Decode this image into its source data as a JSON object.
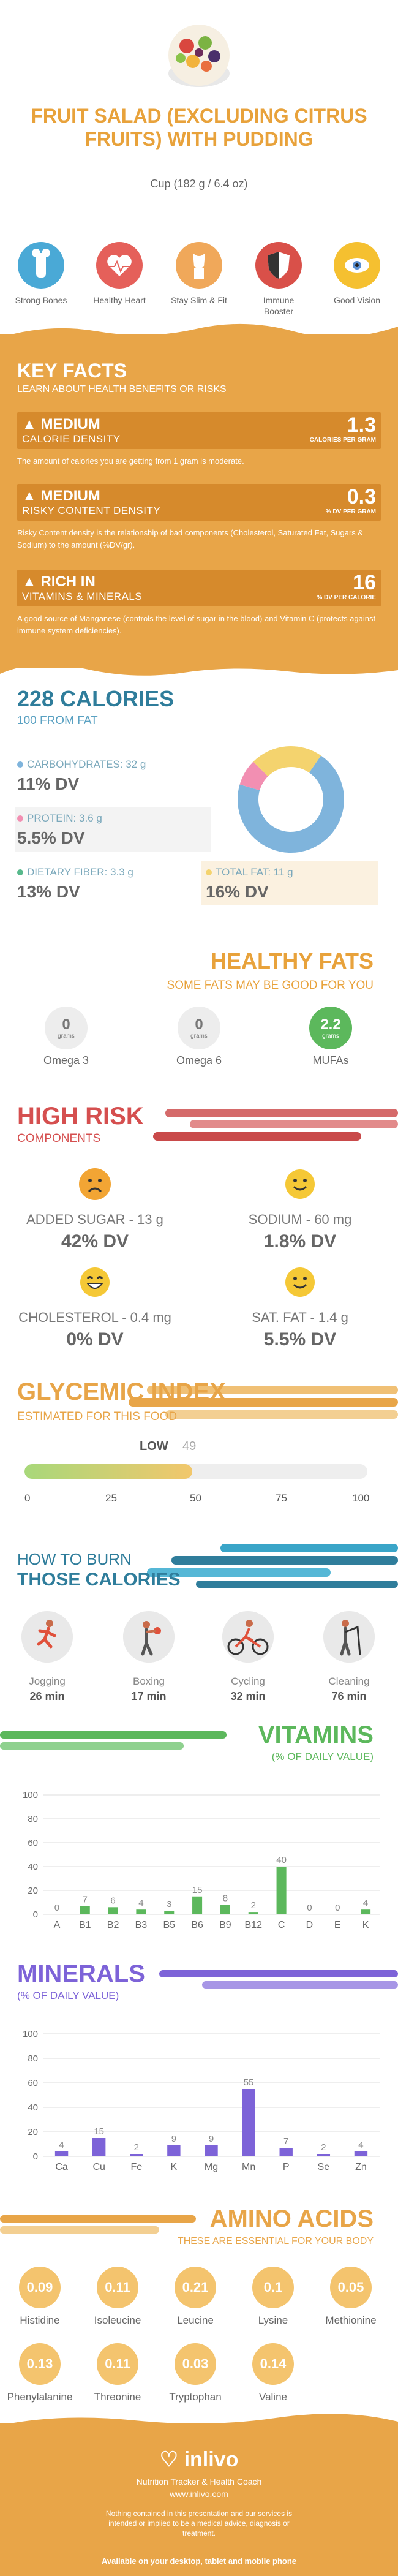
{
  "header": {
    "title": "FRUIT SALAD (EXCLUDING CITRUS FRUITS) WITH PUDDING",
    "serving": "Cup (182 g / 6.4 oz)",
    "benefits": [
      {
        "label": "Strong Bones",
        "icon": "bone-icon",
        "color": "#4aa9d6"
      },
      {
        "label": "Healthy Heart",
        "icon": "heart-icon",
        "color": "#e5605a"
      },
      {
        "label": "Stay Slim & Fit",
        "icon": "body-icon",
        "color": "#f0a85a"
      },
      {
        "label": "Immune Booster",
        "icon": "shield-icon",
        "color": "#d95049"
      },
      {
        "label": "Good Vision",
        "icon": "eye-icon",
        "color": "#f5c030"
      }
    ]
  },
  "key_facts": {
    "title": "KEY FACTS",
    "subtitle": "LEARN ABOUT HEALTH BENEFITS OR RISKS",
    "facts": [
      {
        "level": "MEDIUM",
        "name": "CALORIE DENSITY",
        "value": "1.3",
        "unit": "CALORIES PER GRAM",
        "desc": "The amount of calories you are getting from 1 gram is moderate."
      },
      {
        "level": "MEDIUM",
        "name": "RISKY CONTENT DENSITY",
        "value": "0.3",
        "unit": "% DV PER GRAM",
        "desc": "Risky Content density is the relationship of bad components (Cholesterol, Saturated Fat, Sugars & Sodium) to the amount (%DV/gr)."
      },
      {
        "level": "RICH IN",
        "name": "VITAMINS & MINERALS",
        "value": "16",
        "unit": "% DV PER CALORIE",
        "desc": "A good source of Manganese (controls the level of sugar in the blood) and Vitamin C (protects against immune system deficiencies)."
      }
    ]
  },
  "calories": {
    "title": "228 CALORIES",
    "subtitle": "100 FROM FAT",
    "nutrients": [
      {
        "name": "CARBOHYDRATES: 32 g",
        "dv": "11% DV",
        "color": "#7fb4dc",
        "percent": 70
      },
      {
        "name": "PROTEIN: 3.6 g",
        "dv": "5.5% DV",
        "color": "#f28fb2",
        "percent": 8
      },
      {
        "name": "DIETARY FIBER: 3.3 g",
        "dv": "13% DV",
        "color": "#57b98c",
        "percent": 0
      },
      {
        "name": "TOTAL FAT: 11 g",
        "dv": "16% DV",
        "color": "#f4d36e",
        "percent": 22
      }
    ]
  },
  "fats": {
    "title": "HEALTHY FATS",
    "subtitle": "SOME FATS MAY BE GOOD FOR YOU",
    "items": [
      {
        "value": "0",
        "unit": "grams",
        "name": "Omega 3"
      },
      {
        "value": "0",
        "unit": "grams",
        "name": "Omega 6"
      },
      {
        "value": "2.2",
        "unit": "grams",
        "name": "MUFAs"
      }
    ]
  },
  "risk": {
    "title": "HIGH RISK",
    "subtitle": "COMPONENTS",
    "items": [
      {
        "name": "ADDED SUGAR - 13 g",
        "dv": "42% DV",
        "mood": "sad"
      },
      {
        "name": "SODIUM - 60 mg",
        "dv": "1.8% DV",
        "mood": "happy"
      },
      {
        "name": "CHOLESTEROL - 0.4 mg",
        "dv": "0% DV",
        "mood": "grin"
      },
      {
        "name": "SAT. FAT - 1.4 g",
        "dv": "5.5% DV",
        "mood": "happy"
      }
    ]
  },
  "glycemic": {
    "title": "GLYCEMIC INDEX",
    "subtitle": "ESTIMATED FOR THIS FOOD",
    "level": "LOW",
    "value": "49",
    "fraction": 0.49,
    "ticks": [
      "0",
      "25",
      "50",
      "75",
      "100"
    ]
  },
  "burn": {
    "title_line1": "HOW TO BURN",
    "title_line2": "THOSE CALORIES",
    "activities": [
      {
        "name": "Jogging",
        "time": "26 min",
        "icon": "jogging-icon"
      },
      {
        "name": "Boxing",
        "time": "17 min",
        "icon": "boxing-icon"
      },
      {
        "name": "Cycling",
        "time": "32 min",
        "icon": "cycling-icon"
      },
      {
        "name": "Cleaning",
        "time": "76 min",
        "icon": "cleaning-icon"
      }
    ]
  },
  "vitamins": {
    "title": "VITAMINS",
    "subtitle": "(% OF DAILY VALUE)"
  },
  "minerals": {
    "title": "MINERALS",
    "subtitle": "(% OF DAILY VALUE)"
  },
  "chart_data": [
    {
      "type": "bar",
      "title": "VITAMINS",
      "subtitle": "(% OF DAILY VALUE)",
      "categories": [
        "A",
        "B1",
        "B2",
        "B3",
        "B5",
        "B6",
        "B9",
        "B12",
        "C",
        "D",
        "E",
        "K"
      ],
      "values": [
        0,
        7,
        6,
        4,
        3,
        15,
        8,
        2,
        40,
        0,
        0,
        4
      ],
      "ylim": [
        0,
        100
      ],
      "yticks": [
        0,
        20,
        40,
        60,
        80,
        100
      ],
      "color": "#5cb85c"
    },
    {
      "type": "bar",
      "title": "MINERALS",
      "subtitle": "(% OF DAILY VALUE)",
      "categories": [
        "Ca",
        "Cu",
        "Fe",
        "K",
        "Mg",
        "Mn",
        "P",
        "Se",
        "Zn"
      ],
      "values": [
        4,
        15,
        2,
        9,
        9,
        55,
        7,
        2,
        4
      ],
      "ylim": [
        0,
        100
      ],
      "yticks": [
        0,
        20,
        40,
        60,
        80,
        100
      ],
      "color": "#7d63d8"
    }
  ],
  "amino": {
    "title": "AMINO ACIDS",
    "subtitle": "THESE ARE ESSENTIAL FOR YOUR BODY",
    "items": [
      {
        "value": "0.09",
        "name": "Histidine"
      },
      {
        "value": "0.11",
        "name": "Isoleucine"
      },
      {
        "value": "0.21",
        "name": "Leucine"
      },
      {
        "value": "0.1",
        "name": "Lysine"
      },
      {
        "value": "0.05",
        "name": "Methionine"
      },
      {
        "value": "0.13",
        "name": "Phenylalanine"
      },
      {
        "value": "0.11",
        "name": "Threonine"
      },
      {
        "value": "0.03",
        "name": "Tryptophan"
      },
      {
        "value": "0.14",
        "name": "Valine"
      }
    ]
  },
  "footer": {
    "brand": "inlivo",
    "tagline": "Nutrition Tracker & Health Coach",
    "url": "www.inlivo.com",
    "disclaimer": "Nothing contained in this presentation and our services is intended or implied to be a medical advice, diagnosis or treatment.",
    "available": "Available on your desktop, tablet and mobile phone"
  }
}
